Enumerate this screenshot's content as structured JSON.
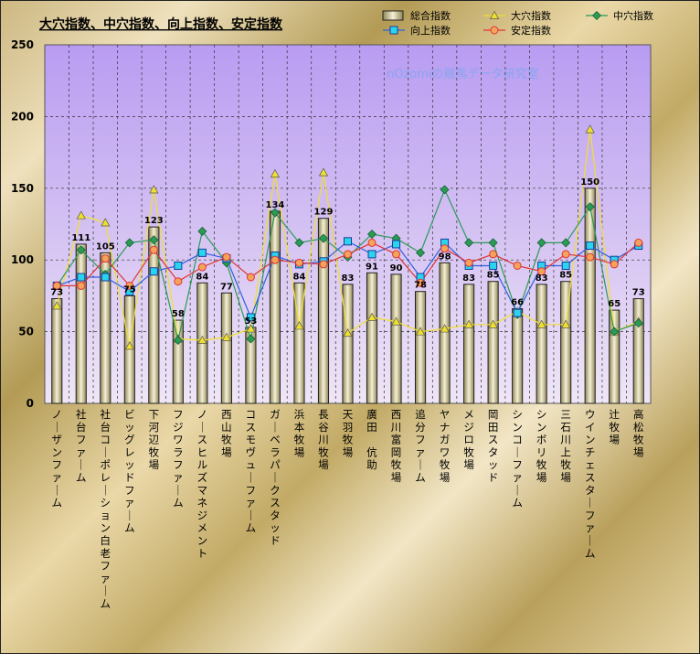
{
  "chart_data": {
    "type": "bar",
    "title": "大穴指数、中穴指数、向上指数、安定指数",
    "watermark": "nOzomiの競馬データ研究室",
    "ylim": [
      0,
      250
    ],
    "yticks": [
      0,
      50,
      100,
      150,
      200,
      250
    ],
    "grid": true,
    "legend": "top-right",
    "categories": [
      "ノーザンファーム",
      "社台ファーム",
      "社台コーポレーション白老ファーム",
      "ビッグレッドファーム",
      "下河辺牧場",
      "フジワラファーム",
      "ノースヒルズマネジメント",
      "西山牧場",
      "コスモヴューファーム",
      "ガーベラパークスタッド",
      "浜本牧場",
      "長谷川牧場",
      "天羽牧場",
      "廣田　伉助",
      "西川富岡牧場",
      "追分ファーム",
      "ヤナガワ牧場",
      "メジロ牧場",
      "岡田スタッド",
      "シンコーファーム",
      "シンボリ牧場",
      "三石川上牧場",
      "ウインチェスターファーム",
      "辻牧場",
      "高松牧場"
    ],
    "series": [
      {
        "name": "総合指数",
        "kind": "bar",
        "color": "#d8cfa0",
        "values": [
          73,
          111,
          105,
          75,
          123,
          58,
          84,
          77,
          53,
          134,
          84,
          129,
          83,
          91,
          90,
          78,
          98,
          83,
          85,
          66,
          83,
          85,
          150,
          65,
          73
        ]
      },
      {
        "name": "大穴指数",
        "kind": "line",
        "color": "#f0e030",
        "marker": "triangle",
        "values": [
          68,
          131,
          126,
          40,
          149,
          45,
          44,
          46,
          52,
          160,
          54,
          161,
          49,
          60,
          57,
          50,
          52,
          55,
          55,
          64,
          55,
          55,
          191,
          50,
          57
        ]
      },
      {
        "name": "中穴指数",
        "kind": "line",
        "color": "#2a9a55",
        "marker": "diamond",
        "values": [
          82,
          107,
          90,
          112,
          114,
          44,
          120,
          98,
          45,
          133,
          112,
          115,
          102,
          118,
          115,
          105,
          149,
          112,
          112,
          62,
          112,
          112,
          137,
          50,
          56
        ]
      },
      {
        "name": "向上指数",
        "kind": "line",
        "color": "#3060dd",
        "marker": "square",
        "values": [
          82,
          88,
          88,
          78,
          92,
          96,
          105,
          101,
          60,
          103,
          97,
          99,
          113,
          104,
          111,
          88,
          112,
          96,
          96,
          63,
          96,
          96,
          110,
          100,
          110
        ]
      },
      {
        "name": "安定指数",
        "kind": "line",
        "color": "#e03535",
        "marker": "circle",
        "values": [
          82,
          82,
          101,
          82,
          107,
          85,
          95,
          102,
          88,
          100,
          98,
          97,
          104,
          112,
          104,
          84,
          108,
          98,
          104,
          96,
          92,
          104,
          102,
          97,
          112
        ]
      }
    ]
  }
}
